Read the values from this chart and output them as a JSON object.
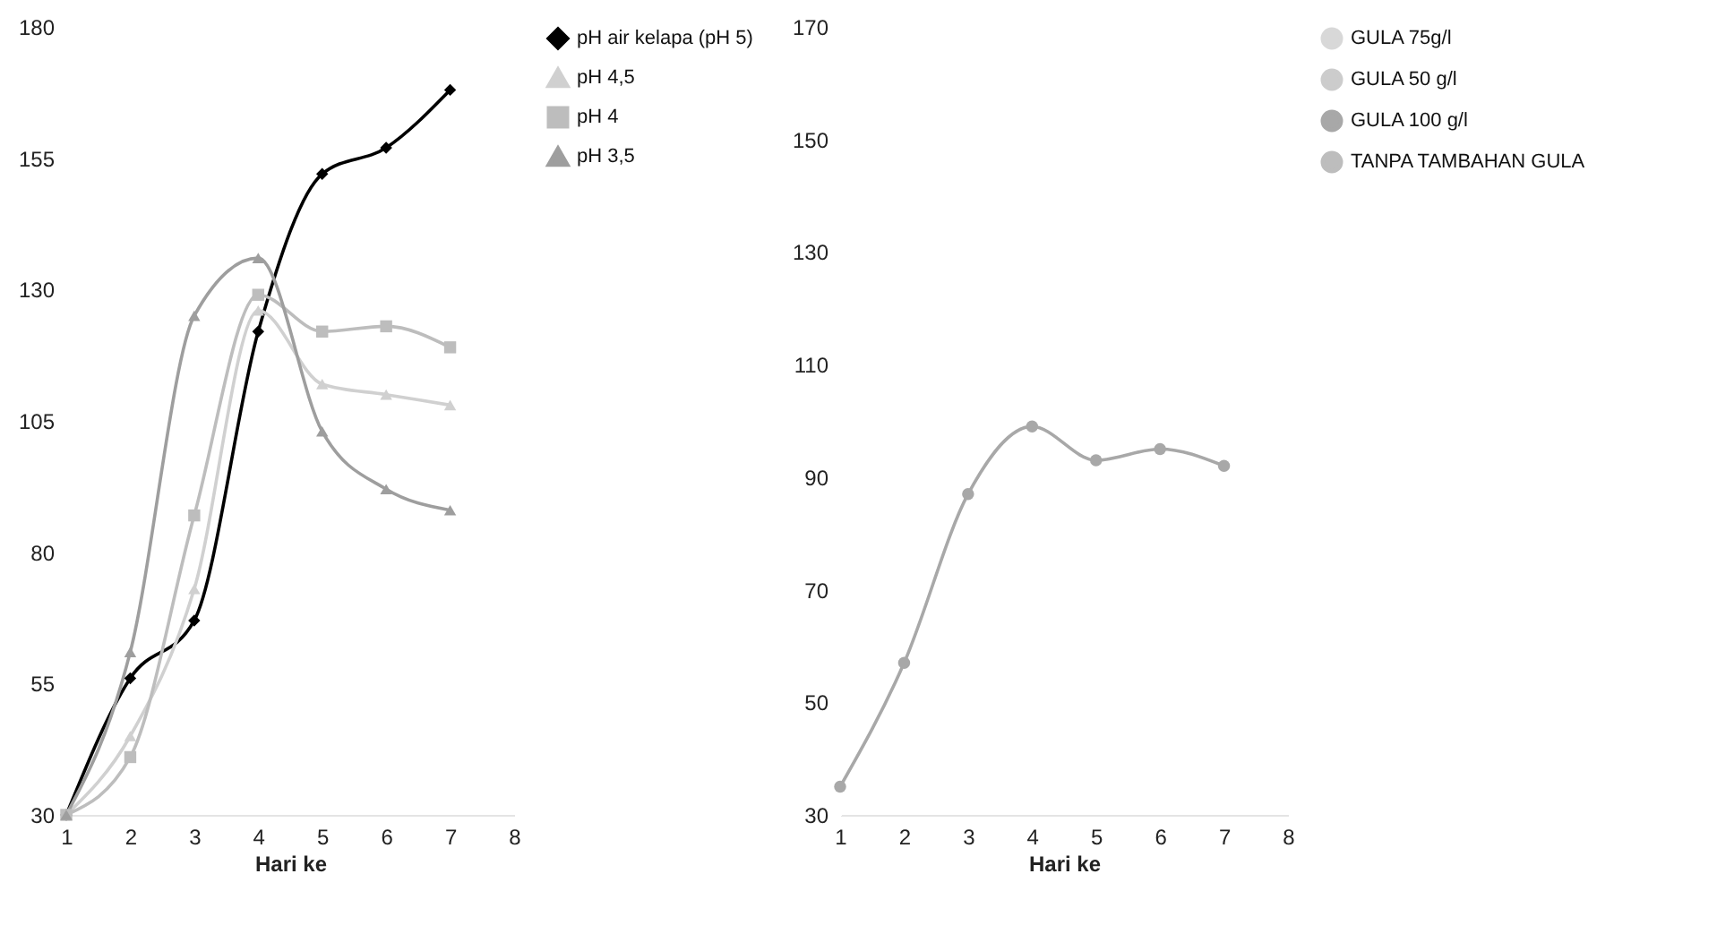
{
  "chart_data": [
    {
      "type": "line",
      "xlabel": "Hari ke",
      "x": [
        1,
        2,
        3,
        4,
        5,
        6,
        7
      ],
      "xlim": [
        1,
        8
      ],
      "xticks": [
        1,
        2,
        3,
        4,
        5,
        6,
        7,
        8
      ],
      "ylim": [
        30,
        180
      ],
      "yticks": [
        30,
        55,
        80,
        105,
        130,
        155,
        180
      ],
      "grid": false,
      "legend": "right",
      "line_style": "solid",
      "series": [
        {
          "name": "pH air kelapa (pH 5)",
          "color": "#000000",
          "marker": "diamond",
          "values": [
            30,
            56,
            67,
            122,
            152,
            157,
            168
          ]
        },
        {
          "name": "pH 4,5",
          "color": "#d0d0d0",
          "marker": "triangle",
          "values": [
            30,
            45,
            73,
            126,
            112,
            110,
            108
          ]
        },
        {
          "name": "pH 4",
          "color": "#bdbdbd",
          "marker": "square",
          "values": [
            30,
            41,
            87,
            129,
            122,
            123,
            119
          ]
        },
        {
          "name": "pH 3,5",
          "color": "#9e9e9e",
          "marker": "triangle",
          "values": [
            30,
            61,
            125,
            136,
            103,
            92,
            88
          ]
        }
      ]
    },
    {
      "type": "line",
      "xlabel": "Hari ke",
      "x": [
        1,
        2,
        3,
        4,
        5,
        6,
        7
      ],
      "xlim": [
        1,
        8
      ],
      "xticks": [
        1,
        2,
        3,
        4,
        5,
        6,
        7,
        8
      ],
      "ylim": [
        30,
        170
      ],
      "yticks": [
        30,
        50,
        70,
        90,
        110,
        130,
        150,
        170
      ],
      "grid": false,
      "legend": "right",
      "line_style": "solid",
      "series": [
        {
          "name": "GULA 75g/l",
          "color": "#d8d8d8",
          "marker": "circle",
          "values": [
            null,
            null,
            null,
            null,
            null,
            null,
            null
          ]
        },
        {
          "name": "GULA 50 g/l",
          "color": "#cccccc",
          "marker": "circle",
          "values": [
            null,
            null,
            null,
            null,
            null,
            null,
            null
          ]
        },
        {
          "name": "GULA 100 g/l",
          "color": "#a8a8a8",
          "marker": "circle",
          "values": [
            35,
            57,
            87,
            99,
            93,
            95,
            92
          ]
        },
        {
          "name": "TANPA TAMBAHAN GULA",
          "color": "#bdbdbd",
          "marker": "circle",
          "values": [
            null,
            null,
            null,
            null,
            null,
            null,
            null
          ]
        }
      ]
    }
  ]
}
